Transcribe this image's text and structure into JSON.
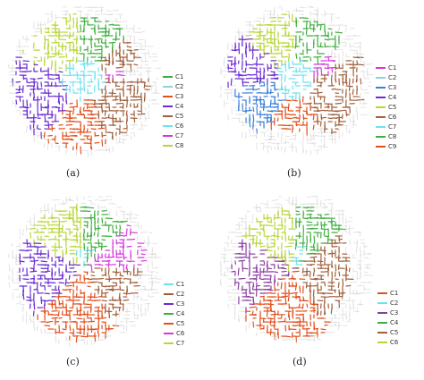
{
  "panels": [
    {
      "caption": "(a)",
      "legend": [
        {
          "label": "C1",
          "color": "#3fae3f"
        },
        {
          "label": "C2",
          "color": "#8fd0e0"
        },
        {
          "label": "C3",
          "color": "#e2501c"
        },
        {
          "label": "C4",
          "color": "#6a2bd2"
        },
        {
          "label": "C5",
          "color": "#a0603c"
        },
        {
          "label": "C6",
          "color": "#6fe0f0"
        },
        {
          "label": "C7",
          "color": "#d636e0"
        },
        {
          "label": "C8",
          "color": "#b8d63a"
        }
      ],
      "regions": [
        {
          "cluster": "C8",
          "start": 200,
          "end": 265,
          "r": 0.95
        },
        {
          "cluster": "C1",
          "start": 265,
          "end": 315,
          "r": 0.9
        },
        {
          "cluster": "C5",
          "start": 315,
          "end": 345,
          "r": 0.85
        },
        {
          "cluster": "C7",
          "start": 345,
          "end": 360,
          "r": 0.55
        },
        {
          "cluster": "C5",
          "start": 0,
          "end": 70,
          "r": 0.95
        },
        {
          "cluster": "C3",
          "start": 70,
          "end": 125,
          "r": 1.0
        },
        {
          "cluster": "C4",
          "start": 125,
          "end": 200,
          "r": 1.0
        },
        {
          "cluster": "C6",
          "start": 0,
          "end": 360,
          "r": 0.3
        }
      ]
    },
    {
      "caption": "(b)",
      "legend": [
        {
          "label": "C1",
          "color": "#d636e0"
        },
        {
          "label": "C2",
          "color": "#8fd0e0"
        },
        {
          "label": "C3",
          "color": "#3a7fd8"
        },
        {
          "label": "C4",
          "color": "#6a2bd2"
        },
        {
          "label": "C5",
          "color": "#b8d63a"
        },
        {
          "label": "C6",
          "color": "#a0603c"
        },
        {
          "label": "C7",
          "color": "#6fe0f0"
        },
        {
          "label": "C8",
          "color": "#3fae3f"
        },
        {
          "label": "C9",
          "color": "#e2501c"
        }
      ],
      "regions": [
        {
          "cluster": "C5",
          "start": 220,
          "end": 270,
          "r": 0.95
        },
        {
          "cluster": "C8",
          "start": 270,
          "end": 320,
          "r": 0.9
        },
        {
          "cluster": "C1",
          "start": 320,
          "end": 350,
          "r": 0.6
        },
        {
          "cluster": "C6",
          "start": 340,
          "end": 60,
          "r": 0.95
        },
        {
          "cluster": "C9",
          "start": 60,
          "end": 120,
          "r": 0.75
        },
        {
          "cluster": "C3",
          "start": 120,
          "end": 175,
          "r": 0.9
        },
        {
          "cluster": "C4",
          "start": 175,
          "end": 220,
          "r": 1.0
        },
        {
          "cluster": "C7",
          "start": 0,
          "end": 360,
          "r": 0.28
        }
      ]
    },
    {
      "caption": "(c)",
      "legend": [
        {
          "label": "C1",
          "color": "#6fe0f0"
        },
        {
          "label": "C2",
          "color": "#a0603c"
        },
        {
          "label": "C3",
          "color": "#6a2bd2"
        },
        {
          "label": "C4",
          "color": "#3fae3f"
        },
        {
          "label": "C5",
          "color": "#e2501c"
        },
        {
          "label": "C6",
          "color": "#d636e0"
        },
        {
          "label": "C7",
          "color": "#b8d63a"
        }
      ],
      "regions": [
        {
          "cluster": "C7",
          "start": 210,
          "end": 268,
          "r": 0.95
        },
        {
          "cluster": "C4",
          "start": 268,
          "end": 315,
          "r": 0.9
        },
        {
          "cluster": "C6",
          "start": 315,
          "end": 360,
          "r": 0.9
        },
        {
          "cluster": "C2",
          "start": 0,
          "end": 60,
          "r": 0.8
        },
        {
          "cluster": "C5",
          "start": 60,
          "end": 135,
          "r": 1.0
        },
        {
          "cluster": "C3",
          "start": 135,
          "end": 210,
          "r": 0.95
        },
        {
          "cluster": "C1",
          "start": 250,
          "end": 290,
          "r": 0.3
        }
      ]
    },
    {
      "caption": "(d)",
      "legend": [
        {
          "label": "C1",
          "color": "#e2501c"
        },
        {
          "label": "C2",
          "color": "#6fe0f0"
        },
        {
          "label": "C3",
          "color": "#8a3fa0"
        },
        {
          "label": "C4",
          "color": "#3fae3f"
        },
        {
          "label": "C5",
          "color": "#a0603c"
        },
        {
          "label": "C6",
          "color": "#b8d63a"
        }
      ],
      "regions": [
        {
          "cluster": "C6",
          "start": 210,
          "end": 268,
          "r": 0.9
        },
        {
          "cluster": "C4",
          "start": 268,
          "end": 320,
          "r": 0.9
        },
        {
          "cluster": "C5",
          "start": 320,
          "end": 60,
          "r": 0.8
        },
        {
          "cluster": "C1",
          "start": 60,
          "end": 140,
          "r": 1.0
        },
        {
          "cluster": "C3",
          "start": 140,
          "end": 210,
          "r": 0.9
        },
        {
          "cluster": "C2",
          "start": 250,
          "end": 300,
          "r": 0.35
        }
      ]
    }
  ]
}
